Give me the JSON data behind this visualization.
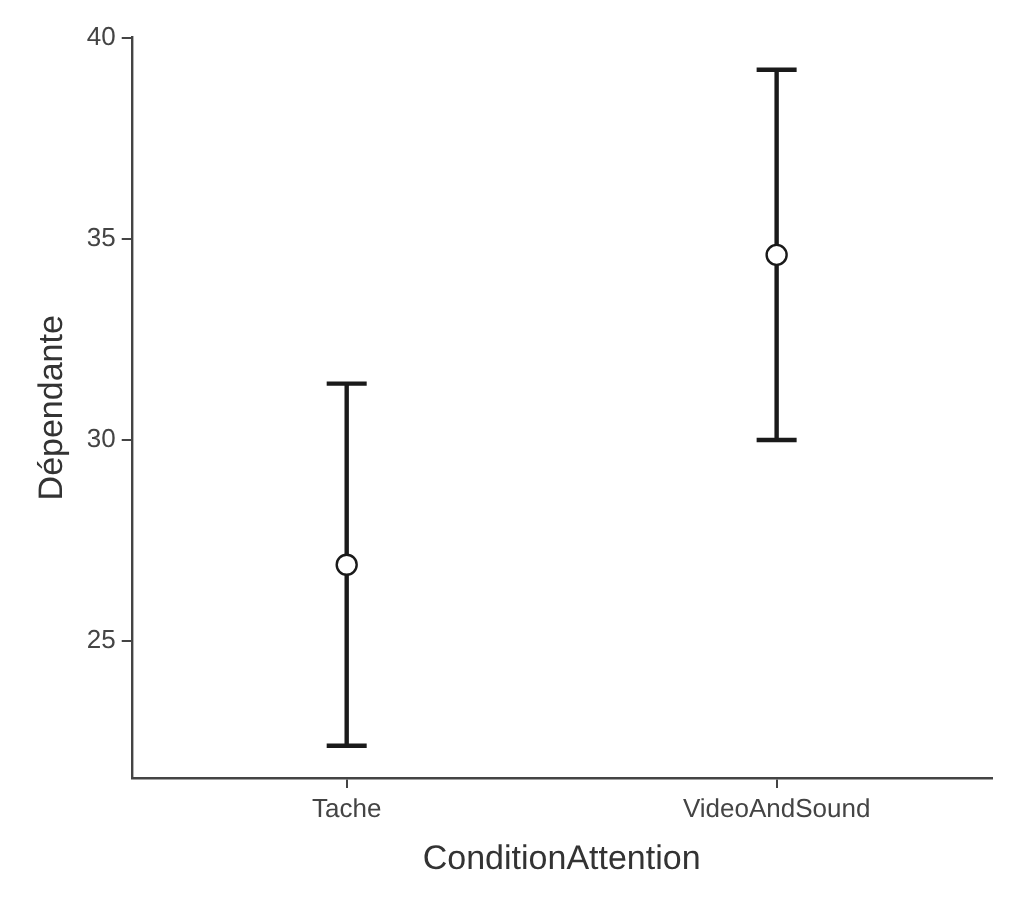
{
  "chart_data": {
    "type": "scatter",
    "xlabel": "ConditionAttention",
    "ylabel": "Dépendante",
    "categories": [
      "Tache",
      "VideoAndSound"
    ],
    "series": [
      {
        "color": "#1a1a1a",
        "values": [
          26.9,
          34.6
        ],
        "errors": [
          4.5,
          4.6
        ]
      }
    ],
    "ylim": [
      21.6,
      40
    ],
    "yticks": [
      25,
      30,
      35,
      40
    ],
    "grid": false,
    "legend": false,
    "marker": "circle"
  }
}
